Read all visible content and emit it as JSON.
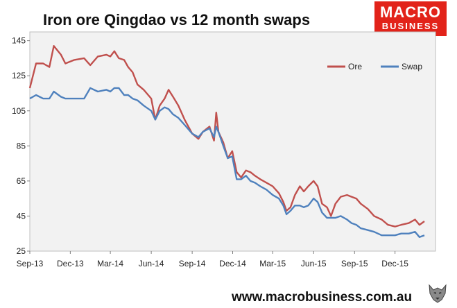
{
  "title": "Iron ore Qingdao vs 12 month swaps",
  "logo": {
    "line1": "MACRO",
    "line2": "BUSINESS",
    "color": "#e2231a"
  },
  "footer": {
    "url": "www.macrobusiness.com.au"
  },
  "wolf_icon": "wolf-head-icon",
  "chart_data": {
    "type": "line",
    "title": "Iron ore Qingdao vs 12 month swaps",
    "xlabel": "",
    "ylabel": "",
    "x_ticks": [
      "Sep-13",
      "Dec-13",
      "Mar-14",
      "Jun-14",
      "Sep-14",
      "Dec-14",
      "Mar-15",
      "Jun-15",
      "Sep-15",
      "Dec-15"
    ],
    "y_ticks": [
      25,
      45,
      65,
      85,
      105,
      125,
      145
    ],
    "ylim": [
      25,
      150
    ],
    "xlim": [
      "2013-09-01",
      "2016-03-01"
    ],
    "grid": false,
    "legend_position": "top-right",
    "series": [
      {
        "name": "Ore",
        "color": "#c0504d",
        "points": [
          [
            "2013-09-01",
            118
          ],
          [
            "2013-09-15",
            132
          ],
          [
            "2013-10-01",
            132
          ],
          [
            "2013-10-15",
            130
          ],
          [
            "2013-10-25",
            142
          ],
          [
            "2013-11-10",
            137
          ],
          [
            "2013-11-20",
            132
          ],
          [
            "2013-12-10",
            134
          ],
          [
            "2014-01-01",
            135
          ],
          [
            "2014-01-15",
            131
          ],
          [
            "2014-02-01",
            136
          ],
          [
            "2014-02-20",
            137
          ],
          [
            "2014-03-01",
            136
          ],
          [
            "2014-03-10",
            139
          ],
          [
            "2014-03-20",
            135
          ],
          [
            "2014-04-01",
            134
          ],
          [
            "2014-04-10",
            130
          ],
          [
            "2014-04-20",
            127
          ],
          [
            "2014-05-01",
            120
          ],
          [
            "2014-05-15",
            117
          ],
          [
            "2014-06-01",
            112
          ],
          [
            "2014-06-10",
            100
          ],
          [
            "2014-06-20",
            108
          ],
          [
            "2014-07-01",
            112
          ],
          [
            "2014-07-10",
            117
          ],
          [
            "2014-07-20",
            113
          ],
          [
            "2014-08-01",
            108
          ],
          [
            "2014-08-15",
            100
          ],
          [
            "2014-09-01",
            92
          ],
          [
            "2014-09-15",
            89
          ],
          [
            "2014-09-25",
            93
          ],
          [
            "2014-10-10",
            96
          ],
          [
            "2014-10-20",
            88
          ],
          [
            "2014-10-25",
            104
          ],
          [
            "2014-10-30",
            93
          ],
          [
            "2014-11-10",
            87
          ],
          [
            "2014-11-20",
            78
          ],
          [
            "2014-11-30",
            82
          ],
          [
            "2014-12-10",
            70
          ],
          [
            "2014-12-20",
            67
          ],
          [
            "2014-12-31",
            71
          ],
          [
            "2015-01-10",
            70
          ],
          [
            "2015-01-20",
            68
          ],
          [
            "2015-02-01",
            66
          ],
          [
            "2015-02-15",
            64
          ],
          [
            "2015-03-01",
            62
          ],
          [
            "2015-03-15",
            58
          ],
          [
            "2015-03-25",
            53
          ],
          [
            "2015-04-01",
            48
          ],
          [
            "2015-04-10",
            50
          ],
          [
            "2015-04-20",
            57
          ],
          [
            "2015-05-01",
            62
          ],
          [
            "2015-05-10",
            59
          ],
          [
            "2015-05-20",
            62
          ],
          [
            "2015-06-01",
            65
          ],
          [
            "2015-06-10",
            62
          ],
          [
            "2015-06-20",
            52
          ],
          [
            "2015-07-01",
            50
          ],
          [
            "2015-07-10",
            45
          ],
          [
            "2015-07-20",
            52
          ],
          [
            "2015-08-01",
            56
          ],
          [
            "2015-08-15",
            57
          ],
          [
            "2015-08-25",
            56
          ],
          [
            "2015-09-05",
            55
          ],
          [
            "2015-09-15",
            52
          ],
          [
            "2015-10-01",
            49
          ],
          [
            "2015-10-15",
            45
          ],
          [
            "2015-11-01",
            43
          ],
          [
            "2015-11-15",
            40
          ],
          [
            "2015-12-01",
            39
          ],
          [
            "2015-12-15",
            40
          ],
          [
            "2016-01-01",
            41
          ],
          [
            "2016-01-15",
            43
          ],
          [
            "2016-01-25",
            40
          ],
          [
            "2016-02-05",
            42
          ]
        ]
      },
      {
        "name": "Swap",
        "color": "#4f81bd",
        "points": [
          [
            "2013-09-01",
            112
          ],
          [
            "2013-09-15",
            114
          ],
          [
            "2013-10-01",
            112
          ],
          [
            "2013-10-15",
            112
          ],
          [
            "2013-10-25",
            116
          ],
          [
            "2013-11-10",
            113
          ],
          [
            "2013-11-20",
            112
          ],
          [
            "2013-12-10",
            112
          ],
          [
            "2014-01-01",
            112
          ],
          [
            "2014-01-15",
            118
          ],
          [
            "2014-02-01",
            116
          ],
          [
            "2014-02-20",
            117
          ],
          [
            "2014-03-01",
            116
          ],
          [
            "2014-03-10",
            118
          ],
          [
            "2014-03-20",
            118
          ],
          [
            "2014-04-01",
            114
          ],
          [
            "2014-04-10",
            114
          ],
          [
            "2014-04-20",
            112
          ],
          [
            "2014-05-01",
            111
          ],
          [
            "2014-05-15",
            108
          ],
          [
            "2014-06-01",
            105
          ],
          [
            "2014-06-10",
            100
          ],
          [
            "2014-06-20",
            105
          ],
          [
            "2014-07-01",
            107
          ],
          [
            "2014-07-10",
            106
          ],
          [
            "2014-07-20",
            103
          ],
          [
            "2014-08-01",
            101
          ],
          [
            "2014-08-15",
            97
          ],
          [
            "2014-09-01",
            92
          ],
          [
            "2014-09-15",
            90
          ],
          [
            "2014-09-25",
            93
          ],
          [
            "2014-10-10",
            95
          ],
          [
            "2014-10-20",
            90
          ],
          [
            "2014-10-25",
            96
          ],
          [
            "2014-10-30",
            93
          ],
          [
            "2014-11-10",
            85
          ],
          [
            "2014-11-20",
            78
          ],
          [
            "2014-11-30",
            79
          ],
          [
            "2014-12-10",
            66
          ],
          [
            "2014-12-20",
            66
          ],
          [
            "2014-12-31",
            68
          ],
          [
            "2015-01-10",
            65
          ],
          [
            "2015-01-20",
            64
          ],
          [
            "2015-02-01",
            62
          ],
          [
            "2015-02-15",
            60
          ],
          [
            "2015-03-01",
            57
          ],
          [
            "2015-03-15",
            55
          ],
          [
            "2015-03-25",
            51
          ],
          [
            "2015-04-01",
            46
          ],
          [
            "2015-04-10",
            48
          ],
          [
            "2015-04-20",
            51
          ],
          [
            "2015-05-01",
            51
          ],
          [
            "2015-05-10",
            50
          ],
          [
            "2015-05-20",
            51
          ],
          [
            "2015-06-01",
            55
          ],
          [
            "2015-06-10",
            53
          ],
          [
            "2015-06-20",
            47
          ],
          [
            "2015-07-01",
            44
          ],
          [
            "2015-07-10",
            44
          ],
          [
            "2015-07-20",
            44
          ],
          [
            "2015-08-01",
            45
          ],
          [
            "2015-08-15",
            43
          ],
          [
            "2015-08-25",
            41
          ],
          [
            "2015-09-05",
            40
          ],
          [
            "2015-09-15",
            38
          ],
          [
            "2015-10-01",
            37
          ],
          [
            "2015-10-15",
            36
          ],
          [
            "2015-11-01",
            34
          ],
          [
            "2015-11-15",
            34
          ],
          [
            "2015-12-01",
            34
          ],
          [
            "2015-12-15",
            35
          ],
          [
            "2016-01-01",
            35
          ],
          [
            "2016-01-15",
            36
          ],
          [
            "2016-01-25",
            33
          ],
          [
            "2016-02-05",
            34
          ]
        ]
      }
    ]
  }
}
